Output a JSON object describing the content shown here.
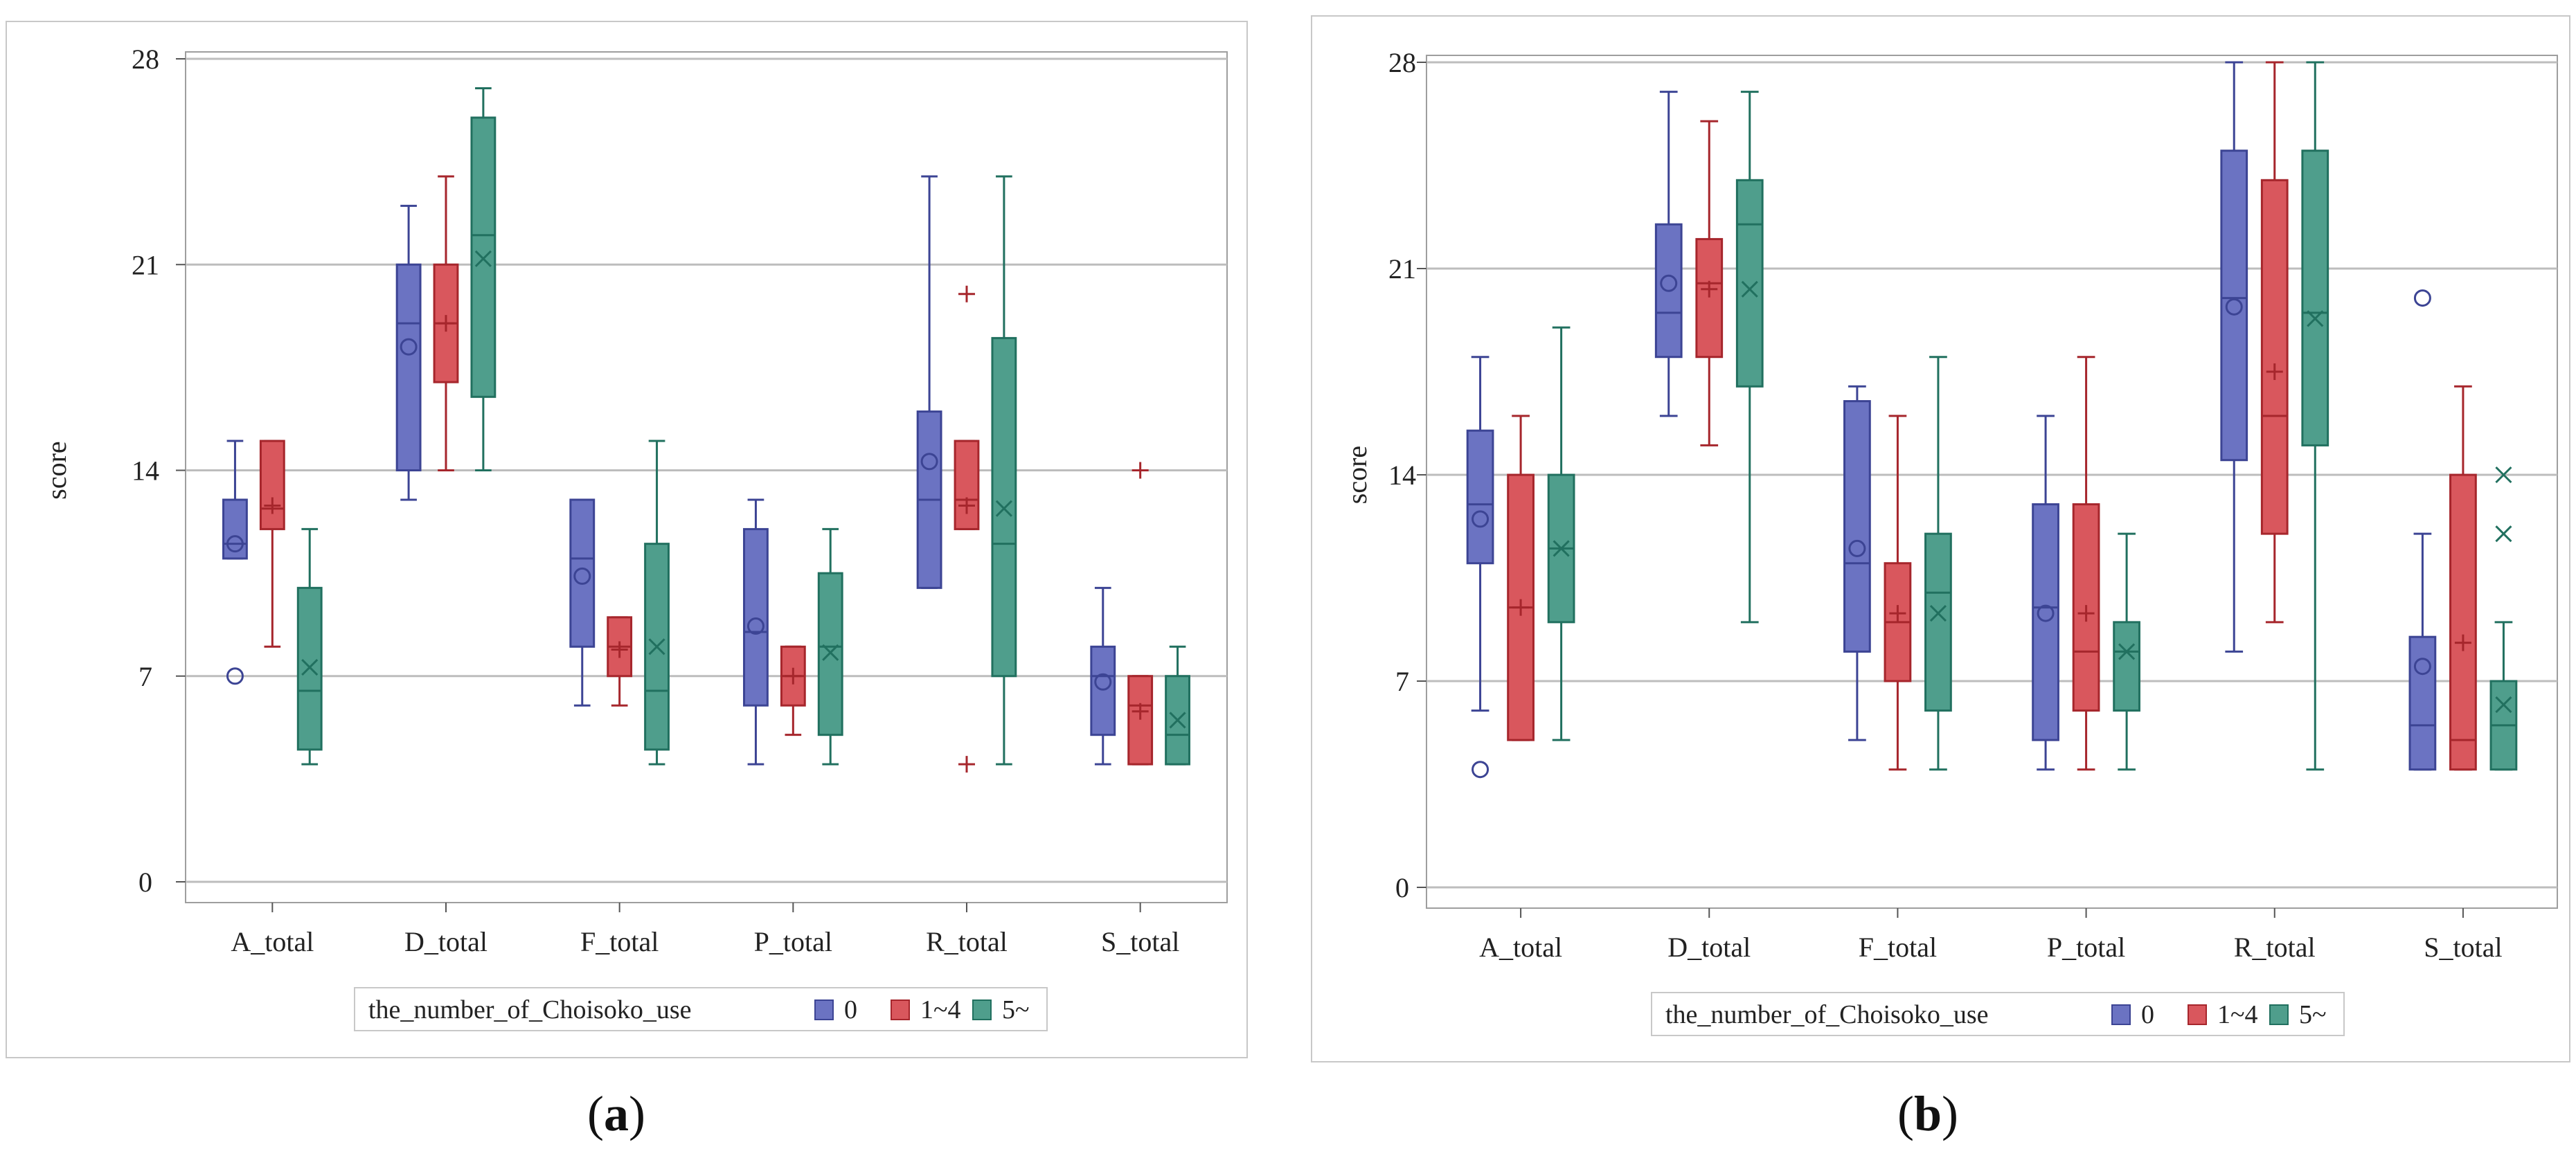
{
  "captions": {
    "a_open": "(",
    "a_letter": "a",
    "a_close": ")",
    "b_open": "(",
    "b_letter": "b",
    "b_close": ")"
  },
  "legend": {
    "title": "the_number_of_Choisoko_use",
    "groups": [
      "0",
      "1~4",
      "5~"
    ]
  },
  "colors": {
    "g0_fill": "#6b73c2",
    "g0_line": "#3c4494",
    "g1_fill": "#d9575d",
    "g1_line": "#a6262c",
    "g2_fill": "#4f9e8c",
    "g2_line": "#21705f",
    "grid": "#bdbdbd"
  },
  "chart_data": [
    {
      "panel": "a",
      "type": "box",
      "ylabel": "score",
      "ylim": [
        0,
        28
      ],
      "yticks": [
        0,
        7,
        14,
        21,
        28
      ],
      "categories": [
        "A_total",
        "D_total",
        "F_total",
        "P_total",
        "R_total",
        "S_total"
      ],
      "series": [
        {
          "name": "0",
          "boxes": [
            {
              "min": 11,
              "q1": 11,
              "median": 11.5,
              "q3": 13,
              "max": 15,
              "mean": 11.5,
              "outliers": [
                7
              ]
            },
            {
              "min": 13,
              "q1": 14,
              "median": 19,
              "q3": 21,
              "max": 23,
              "mean": 18.2,
              "outliers": []
            },
            {
              "min": 6,
              "q1": 8,
              "median": 11,
              "q3": 13,
              "max": 13,
              "mean": 10.4,
              "outliers": []
            },
            {
              "min": 4,
              "q1": 6,
              "median": 8.5,
              "q3": 12,
              "max": 13,
              "mean": 8.7,
              "outliers": []
            },
            {
              "min": 10,
              "q1": 10,
              "median": 13,
              "q3": 16,
              "max": 24,
              "mean": 14.3,
              "outliers": []
            },
            {
              "min": 4,
              "q1": 5,
              "median": 7,
              "q3": 8,
              "max": 10,
              "mean": 6.8,
              "outliers": []
            }
          ]
        },
        {
          "name": "1~4",
          "boxes": [
            {
              "min": 8,
              "q1": 12,
              "median": 12.7,
              "q3": 15,
              "max": 15,
              "mean": 12.8,
              "outliers": []
            },
            {
              "min": 14,
              "q1": 17,
              "median": 19,
              "q3": 21,
              "max": 24,
              "mean": 19,
              "outliers": []
            },
            {
              "min": 6,
              "q1": 7,
              "median": 8,
              "q3": 9,
              "max": 9,
              "mean": 7.9,
              "outliers": []
            },
            {
              "min": 5,
              "q1": 6,
              "median": 7,
              "q3": 8,
              "max": 8,
              "mean": 7,
              "outliers": []
            },
            {
              "min": 12,
              "q1": 12,
              "median": 13,
              "q3": 15,
              "max": 15,
              "mean": 12.8,
              "outliers": [
                20,
                4
              ]
            },
            {
              "min": 4,
              "q1": 4,
              "median": 6,
              "q3": 7,
              "max": 7,
              "mean": 5.8,
              "outliers": [
                14
              ]
            }
          ]
        },
        {
          "name": "5~",
          "boxes": [
            {
              "min": 4,
              "q1": 4.5,
              "median": 6.5,
              "q3": 10,
              "max": 12,
              "mean": 7.3,
              "outliers": []
            },
            {
              "min": 14,
              "q1": 16.5,
              "median": 22,
              "q3": 26,
              "max": 27,
              "mean": 21.2,
              "outliers": []
            },
            {
              "min": 4,
              "q1": 4.5,
              "median": 6.5,
              "q3": 11.5,
              "max": 15,
              "mean": 8,
              "outliers": []
            },
            {
              "min": 4,
              "q1": 5,
              "median": 8,
              "q3": 10.5,
              "max": 12,
              "mean": 7.8,
              "outliers": []
            },
            {
              "min": 4,
              "q1": 7,
              "median": 11.5,
              "q3": 18.5,
              "max": 24,
              "mean": 12.7,
              "outliers": []
            },
            {
              "min": 4,
              "q1": 4,
              "median": 5,
              "q3": 7,
              "max": 8,
              "mean": 5.5,
              "outliers": []
            }
          ]
        }
      ]
    },
    {
      "panel": "b",
      "type": "box",
      "ylabel": "score",
      "ylim": [
        0,
        28
      ],
      "yticks": [
        0,
        7,
        14,
        21,
        28
      ],
      "categories": [
        "A_total",
        "D_total",
        "F_total",
        "P_total",
        "R_total",
        "S_total"
      ],
      "series": [
        {
          "name": "0",
          "boxes": [
            {
              "min": 6,
              "q1": 11,
              "median": 13,
              "q3": 15.5,
              "max": 18,
              "mean": 12.5,
              "outliers": [
                4
              ]
            },
            {
              "min": 16,
              "q1": 18,
              "median": 19.5,
              "q3": 22.5,
              "max": 27,
              "mean": 20.5,
              "outliers": []
            },
            {
              "min": 5,
              "q1": 8,
              "median": 11,
              "q3": 16.5,
              "max": 17,
              "mean": 11.5,
              "outliers": []
            },
            {
              "min": 4,
              "q1": 5,
              "median": 9.5,
              "q3": 13,
              "max": 16,
              "mean": 9.3,
              "outliers": []
            },
            {
              "min": 8,
              "q1": 14.5,
              "median": 20,
              "q3": 25,
              "max": 28,
              "mean": 19.7,
              "outliers": []
            },
            {
              "min": 4,
              "q1": 4,
              "median": 5.5,
              "q3": 8.5,
              "max": 12,
              "mean": 7.5,
              "outliers": [
                20
              ]
            }
          ]
        },
        {
          "name": "1~4",
          "boxes": [
            {
              "min": 5,
              "q1": 5,
              "median": 9.5,
              "q3": 14,
              "max": 16,
              "mean": 9.5,
              "outliers": []
            },
            {
              "min": 15,
              "q1": 18,
              "median": 20.5,
              "q3": 22,
              "max": 26,
              "mean": 20.3,
              "outliers": []
            },
            {
              "min": 4,
              "q1": 7,
              "median": 9,
              "q3": 11,
              "max": 16,
              "mean": 9.3,
              "outliers": []
            },
            {
              "min": 4,
              "q1": 6,
              "median": 8,
              "q3": 13,
              "max": 18,
              "mean": 9.3,
              "outliers": []
            },
            {
              "min": 9,
              "q1": 12,
              "median": 16,
              "q3": 24,
              "max": 28,
              "mean": 17.5,
              "outliers": []
            },
            {
              "min": 4,
              "q1": 4,
              "median": 5,
              "q3": 14,
              "max": 17,
              "mean": 8.3,
              "outliers": []
            }
          ]
        },
        {
          "name": "5~",
          "boxes": [
            {
              "min": 5,
              "q1": 9,
              "median": 11.5,
              "q3": 14,
              "max": 19,
              "mean": 11.5,
              "outliers": []
            },
            {
              "min": 9,
              "q1": 17,
              "median": 22.5,
              "q3": 24,
              "max": 27,
              "mean": 20.3,
              "outliers": []
            },
            {
              "min": 4,
              "q1": 6,
              "median": 10,
              "q3": 12,
              "max": 18,
              "mean": 9.3,
              "outliers": []
            },
            {
              "min": 4,
              "q1": 6,
              "median": 8,
              "q3": 9,
              "max": 12,
              "mean": 8,
              "outliers": []
            },
            {
              "min": 4,
              "q1": 15,
              "median": 19.5,
              "q3": 25,
              "max": 28,
              "mean": 19.3,
              "outliers": []
            },
            {
              "min": 4,
              "q1": 4,
              "median": 5.5,
              "q3": 7,
              "max": 9,
              "mean": 6.2,
              "outliers": [
                12,
                14
              ]
            }
          ]
        }
      ]
    }
  ]
}
